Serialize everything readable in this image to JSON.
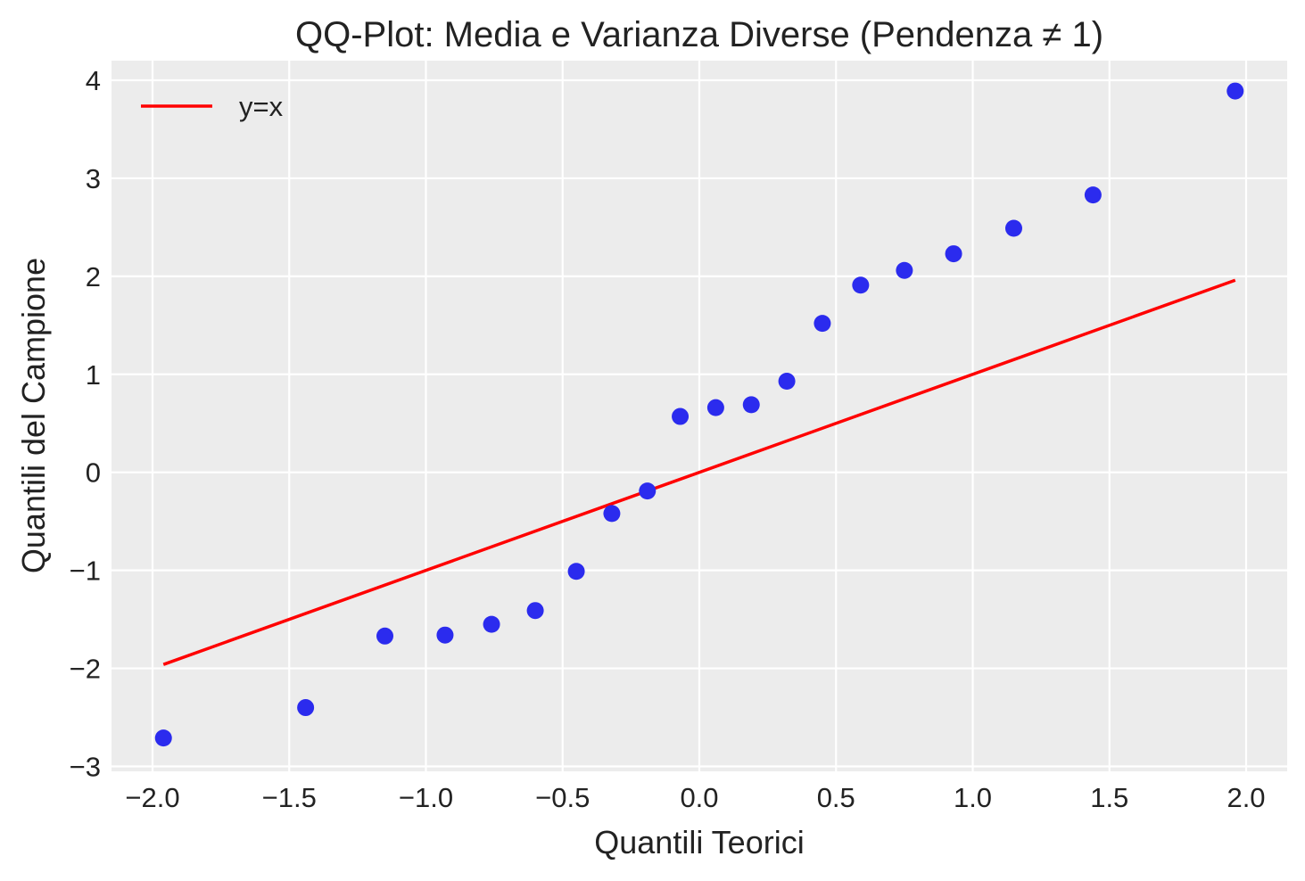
{
  "chart_data": {
    "type": "scatter",
    "title": "QQ-Plot: Media e Varianza Diverse (Pendenza ≠ 1)",
    "xlabel": "Quantili Teorici",
    "ylabel": "Quantili del Campione",
    "xlim": [
      -2.15,
      2.15
    ],
    "ylim": [
      -3.05,
      4.2
    ],
    "xticks": [
      -2.0,
      -1.5,
      -1.0,
      -0.5,
      0.0,
      0.5,
      1.0,
      1.5,
      2.0
    ],
    "xtick_labels": [
      "−2.0",
      "−1.5",
      "−1.0",
      "−0.5",
      "0.0",
      "0.5",
      "1.0",
      "1.5",
      "2.0"
    ],
    "yticks": [
      -3,
      -2,
      -1,
      0,
      1,
      2,
      3,
      4
    ],
    "ytick_labels": [
      "−3",
      "−2",
      "−1",
      "0",
      "1",
      "2",
      "3",
      "4"
    ],
    "grid": true,
    "legend_position": "top-left",
    "series": [
      {
        "kind": "scatter",
        "color": "#2b2bee",
        "points": [
          [
            -1.96,
            -2.71
          ],
          [
            -1.44,
            -2.4
          ],
          [
            -1.15,
            -1.67
          ],
          [
            -0.93,
            -1.66
          ],
          [
            -0.76,
            -1.55
          ],
          [
            -0.6,
            -1.41
          ],
          [
            -0.45,
            -1.01
          ],
          [
            -0.32,
            -0.42
          ],
          [
            -0.19,
            -0.19
          ],
          [
            -0.07,
            0.57
          ],
          [
            0.06,
            0.66
          ],
          [
            0.19,
            0.69
          ],
          [
            0.32,
            0.93
          ],
          [
            0.45,
            1.52
          ],
          [
            0.59,
            1.91
          ],
          [
            0.75,
            2.06
          ],
          [
            0.93,
            2.23
          ],
          [
            1.15,
            2.49
          ],
          [
            1.44,
            2.83
          ],
          [
            1.96,
            3.89
          ]
        ]
      },
      {
        "kind": "line",
        "name": "y=x",
        "color": "#ff0000",
        "points": [
          [
            -1.96,
            -1.96
          ],
          [
            1.96,
            1.96
          ]
        ]
      }
    ]
  }
}
